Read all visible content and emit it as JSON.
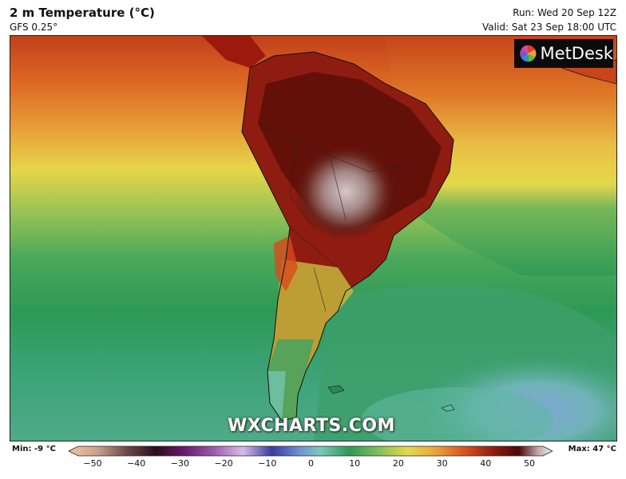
{
  "header": {
    "title": "2 m Temperature (°C)",
    "model": "GFS 0.25°",
    "run": "Run: Wed 20 Sep 12Z",
    "valid": "Valid: Sat 23 Sep 18:00 UTC"
  },
  "logo": {
    "text": "MetDesk"
  },
  "watermark": "WXCHARTS.COM",
  "legend": {
    "min_label": "Min: -9 °C",
    "max_label": "Max: 47 °C",
    "ticks": [
      "−50",
      "−40",
      "−30",
      "−20",
      "−10",
      "0",
      "10",
      "20",
      "30",
      "40",
      "50"
    ]
  },
  "colors": {
    "hot_dark": "#5e1009",
    "hot": "#9c1a0d",
    "warm_orange": "#e06d1e",
    "yellow": "#e6d84a",
    "green_light": "#8fbf58",
    "green": "#2f9a55",
    "teal": "#58b39a",
    "cold_blue": "#8fb4d8"
  }
}
